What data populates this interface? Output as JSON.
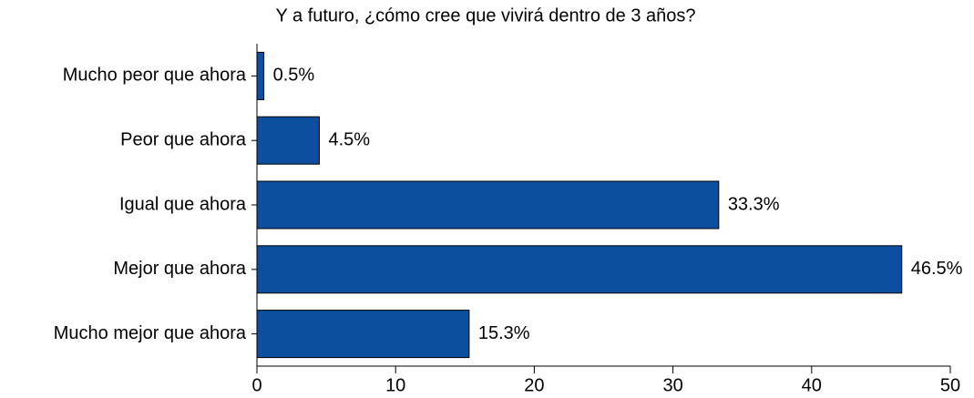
{
  "chart_data": {
    "type": "bar",
    "orientation": "horizontal",
    "title": "Y a futuro, ¿cómo cree que vivirá dentro de 3 años?",
    "categories": [
      "Mucho peor que ahora",
      "Peor que ahora",
      "Igual que ahora",
      "Mejor que ahora",
      "Mucho mejor que ahora"
    ],
    "values": [
      0.5,
      4.5,
      33.3,
      46.5,
      15.3
    ],
    "value_labels": [
      "0.5%",
      "4.5%",
      "33.3%",
      "46.5%",
      "15.3%"
    ],
    "color": "#0b4f9e",
    "xlim": [
      0,
      50
    ],
    "xticks": [
      0,
      10,
      20,
      30,
      40,
      50
    ]
  }
}
